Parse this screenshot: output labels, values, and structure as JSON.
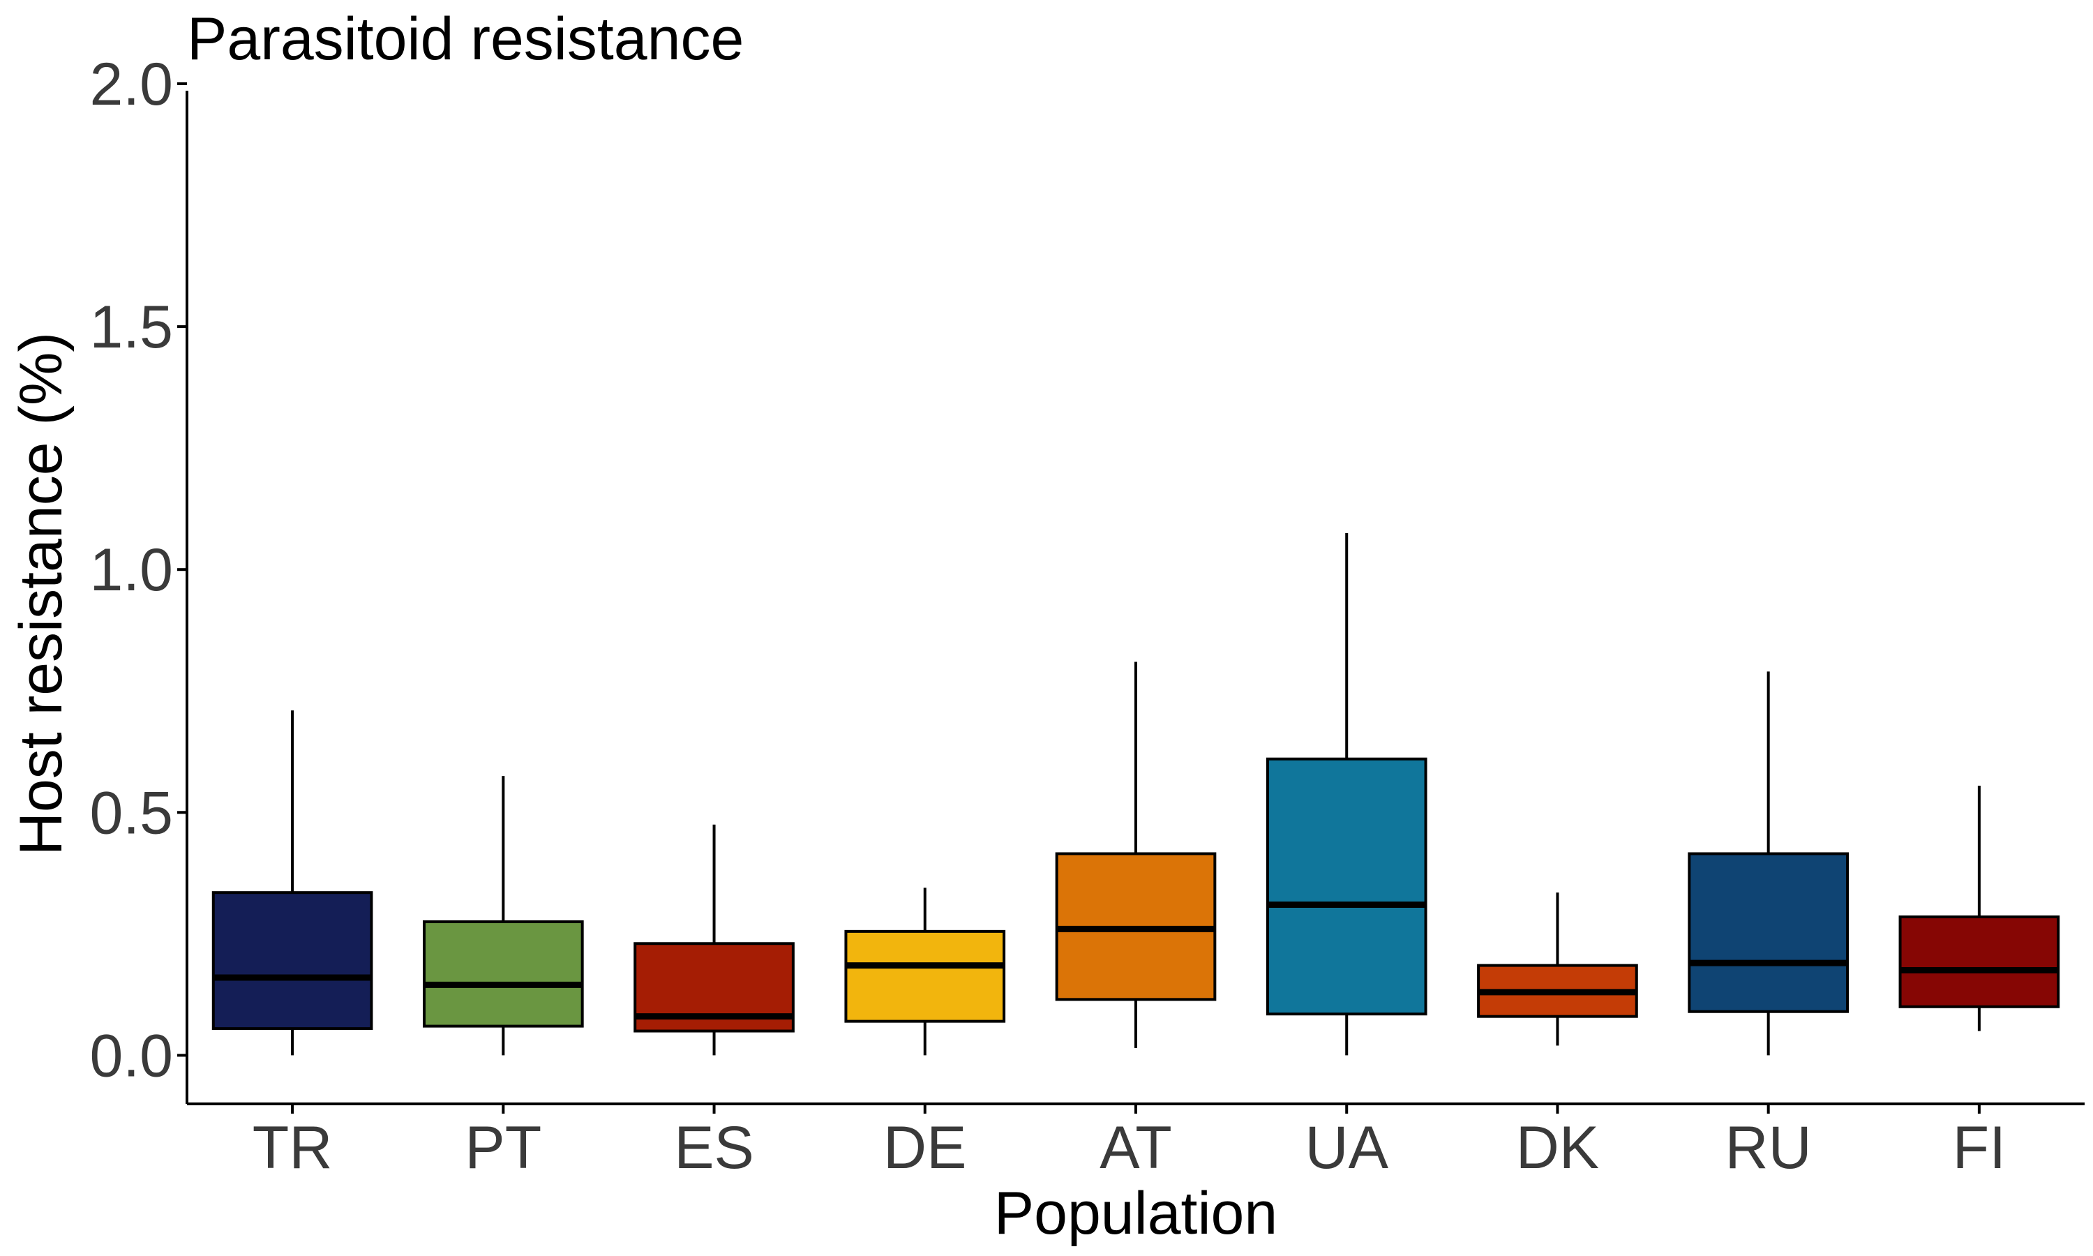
{
  "chart_data": {
    "type": "boxplot",
    "title": "Parasitoid resistance",
    "xlabel": "Population",
    "ylabel": "Host resistance (%)",
    "ylim": [
      -0.1,
      2.0
    ],
    "yticks": [
      0.0,
      0.5,
      1.0,
      1.5,
      2.0
    ],
    "ytick_labels": [
      "0.0",
      "0.5",
      "1.0",
      "1.5",
      "2.0"
    ],
    "grid": false,
    "legend": "none",
    "categories": [
      "TR",
      "PT",
      "ES",
      "DE",
      "AT",
      "UA",
      "DK",
      "RU",
      "FI"
    ],
    "boxes": [
      {
        "name": "TR",
        "whisker_low": 0.0,
        "q1": 0.055,
        "median": 0.16,
        "q3": 0.335,
        "whisker_high": 0.71,
        "color": "#141e56"
      },
      {
        "name": "PT",
        "whisker_low": 0.0,
        "q1": 0.06,
        "median": 0.145,
        "q3": 0.275,
        "whisker_high": 0.575,
        "color": "#6a9641"
      },
      {
        "name": "ES",
        "whisker_low": 0.0,
        "q1": 0.05,
        "median": 0.08,
        "q3": 0.23,
        "whisker_high": 0.475,
        "color": "#a51d04"
      },
      {
        "name": "DE",
        "whisker_low": 0.0,
        "q1": 0.07,
        "median": 0.185,
        "q3": 0.255,
        "whisker_high": 0.345,
        "color": "#f2b50d"
      },
      {
        "name": "AT",
        "whisker_low": 0.015,
        "q1": 0.115,
        "median": 0.26,
        "q3": 0.415,
        "whisker_high": 0.81,
        "color": "#db7407"
      },
      {
        "name": "UA",
        "whisker_low": 0.0,
        "q1": 0.085,
        "median": 0.31,
        "q3": 0.61,
        "whisker_high": 1.075,
        "color": "#10769b"
      },
      {
        "name": "DK",
        "whisker_low": 0.02,
        "q1": 0.08,
        "median": 0.13,
        "q3": 0.185,
        "whisker_high": 0.335,
        "color": "#c43c06"
      },
      {
        "name": "RU",
        "whisker_low": 0.0,
        "q1": 0.09,
        "median": 0.19,
        "q3": 0.415,
        "whisker_high": 0.79,
        "color": "#0f4473"
      },
      {
        "name": "FI",
        "whisker_low": 0.05,
        "q1": 0.1,
        "median": 0.175,
        "q3": 0.285,
        "whisker_high": 0.555,
        "color": "#860604"
      }
    ]
  }
}
